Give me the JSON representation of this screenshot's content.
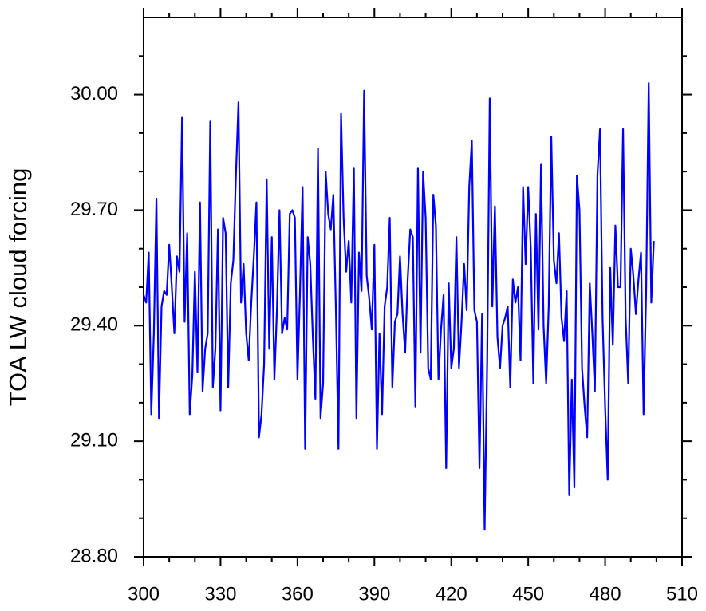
{
  "chart_data": {
    "type": "line",
    "ylabel": "TOA LW cloud forcing",
    "x": [
      300,
      301,
      302,
      303,
      304,
      305,
      306,
      307,
      308,
      309,
      310,
      311,
      312,
      313,
      314,
      315,
      316,
      317,
      318,
      319,
      320,
      321,
      322,
      323,
      324,
      325,
      326,
      327,
      328,
      329,
      330,
      331,
      332,
      333,
      334,
      335,
      336,
      337,
      338,
      339,
      340,
      341,
      342,
      343,
      344,
      345,
      346,
      347,
      348,
      349,
      350,
      351,
      352,
      353,
      354,
      355,
      356,
      357,
      358,
      359,
      360,
      361,
      362,
      363,
      364,
      365,
      366,
      367,
      368,
      369,
      370,
      371,
      372,
      373,
      374,
      375,
      376,
      377,
      378,
      379,
      380,
      381,
      382,
      383,
      384,
      385,
      386,
      387,
      388,
      389,
      390,
      391,
      392,
      393,
      394,
      395,
      396,
      397,
      398,
      399,
      400,
      401,
      402,
      403,
      404,
      405,
      406,
      407,
      408,
      409,
      410,
      411,
      412,
      413,
      414,
      415,
      416,
      417,
      418,
      419,
      420,
      421,
      422,
      423,
      424,
      425,
      426,
      427,
      428,
      429,
      430,
      431,
      432,
      433,
      434,
      435,
      436,
      437,
      438,
      439,
      440,
      441,
      442,
      443,
      444,
      445,
      446,
      447,
      448,
      449,
      450,
      451,
      452,
      453,
      454,
      455,
      456,
      457,
      458,
      459,
      460,
      461,
      462,
      463,
      464,
      465,
      466,
      467,
      468,
      469,
      470,
      471,
      472,
      473,
      474,
      475,
      476,
      477,
      478,
      479,
      480,
      481,
      482,
      483,
      484,
      485,
      486,
      487,
      488,
      489,
      490,
      491,
      492,
      493,
      494,
      495,
      496,
      497,
      498,
      499
    ],
    "series": [
      {
        "color": "#0000ff",
        "values": [
          29.48,
          29.46,
          29.59,
          29.17,
          29.38,
          29.73,
          29.16,
          29.45,
          29.49,
          29.48,
          29.61,
          29.5,
          29.38,
          29.58,
          29.54,
          29.94,
          29.41,
          29.64,
          29.17,
          29.27,
          29.54,
          29.28,
          29.72,
          29.23,
          29.34,
          29.38,
          29.93,
          29.24,
          29.34,
          29.65,
          29.18,
          29.68,
          29.64,
          29.24,
          29.51,
          29.57,
          29.79,
          29.98,
          29.46,
          29.56,
          29.38,
          29.31,
          29.46,
          29.58,
          29.72,
          29.11,
          29.17,
          29.3,
          29.78,
          29.34,
          29.63,
          29.26,
          29.44,
          29.7,
          29.38,
          29.42,
          29.39,
          29.69,
          29.7,
          29.68,
          29.26,
          29.49,
          29.76,
          29.08,
          29.63,
          29.56,
          29.37,
          29.21,
          29.86,
          29.16,
          29.25,
          29.8,
          29.69,
          29.65,
          29.74,
          29.44,
          29.08,
          29.95,
          29.68,
          29.54,
          29.62,
          29.46,
          29.81,
          29.16,
          29.59,
          29.49,
          30.01,
          29.53,
          29.47,
          29.39,
          29.61,
          29.08,
          29.38,
          29.17,
          29.45,
          29.5,
          29.68,
          29.24,
          29.41,
          29.43,
          29.58,
          29.43,
          29.33,
          29.52,
          29.65,
          29.63,
          29.19,
          29.81,
          29.33,
          29.8,
          29.68,
          29.29,
          29.26,
          29.74,
          29.66,
          29.26,
          29.39,
          29.48,
          29.03,
          29.51,
          29.29,
          29.34,
          29.63,
          29.29,
          29.41,
          29.56,
          29.44,
          29.76,
          29.88,
          29.44,
          29.41,
          29.03,
          29.43,
          28.87,
          29.31,
          29.99,
          29.45,
          29.71,
          29.37,
          29.29,
          29.4,
          29.42,
          29.45,
          29.24,
          29.52,
          29.46,
          29.5,
          29.31,
          29.76,
          29.56,
          29.76,
          29.6,
          29.25,
          29.69,
          29.39,
          29.82,
          29.4,
          29.25,
          29.45,
          29.89,
          29.57,
          29.51,
          29.64,
          29.42,
          29.36,
          29.49,
          28.96,
          29.26,
          28.98,
          29.79,
          29.7,
          29.29,
          29.19,
          29.11,
          29.51,
          29.38,
          29.23,
          29.79,
          29.91,
          29.42,
          29.19,
          29.0,
          29.55,
          29.35,
          29.66,
          29.5,
          29.5,
          29.91,
          29.42,
          29.25,
          29.6,
          29.53,
          29.43,
          29.52,
          29.59,
          29.17,
          29.49,
          30.03,
          29.46,
          29.62
        ]
      }
    ],
    "xlim": [
      300,
      510
    ],
    "xticks": [
      300,
      330,
      360,
      390,
      420,
      450,
      480,
      510
    ],
    "xminorticks": [
      310,
      320,
      340,
      350,
      370,
      380,
      400,
      410,
      430,
      440,
      460,
      470,
      490,
      500
    ],
    "ylim": [
      28.8,
      30.2
    ],
    "yticks": [
      {
        "value": 28.8,
        "label": "28.80"
      },
      {
        "value": 29.1,
        "label": "29.10"
      },
      {
        "value": 29.4,
        "label": "29.40"
      },
      {
        "value": 29.7,
        "label": "29.70"
      },
      {
        "value": 30.0,
        "label": "30.00"
      }
    ],
    "yminorticks": [
      28.9,
      29.0,
      29.2,
      29.3,
      29.5,
      29.6,
      29.8,
      29.9,
      30.1
    ]
  }
}
